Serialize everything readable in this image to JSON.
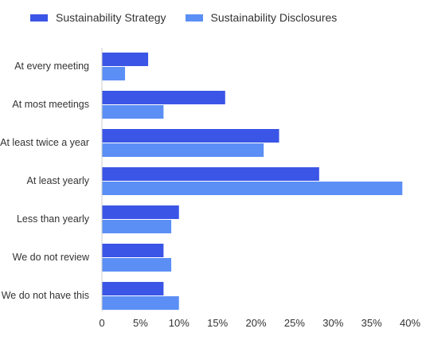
{
  "chart_data": {
    "type": "bar",
    "orientation": "horizontal",
    "categories": [
      "At every meeting",
      "At most meetings",
      "At least twice a year",
      "At least yearly",
      "Less than yearly",
      "We do not review",
      "We do not have this"
    ],
    "series": [
      {
        "name": "Sustainability Strategy",
        "color": "#3b55e6",
        "values": [
          6,
          16,
          23,
          28.2,
          10,
          8,
          8
        ]
      },
      {
        "name": "Sustainability Disclosures",
        "color": "#5b8ff5",
        "values": [
          3,
          8,
          21,
          39,
          9,
          9,
          10
        ]
      }
    ],
    "xlim": [
      0,
      40
    ],
    "xticks": [
      "0",
      "5%",
      "10%",
      "15%",
      "20%",
      "25%",
      "30%",
      "35%",
      "40%"
    ],
    "title": "",
    "xlabel": "",
    "ylabel": "",
    "grid": false,
    "legend_position": "top-left"
  }
}
